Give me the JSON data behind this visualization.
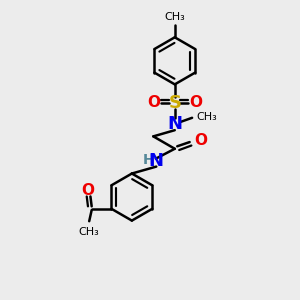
{
  "bg_color": "#ececec",
  "bond_color": "#000000",
  "N_color": "#0000ee",
  "O_color": "#ee0000",
  "S_color": "#ccaa00",
  "H_color": "#558899",
  "lw": 1.8,
  "figsize": [
    3.0,
    3.0
  ],
  "dpi": 100,
  "xlim": [
    -1,
    9
  ],
  "ylim": [
    -1,
    11
  ]
}
